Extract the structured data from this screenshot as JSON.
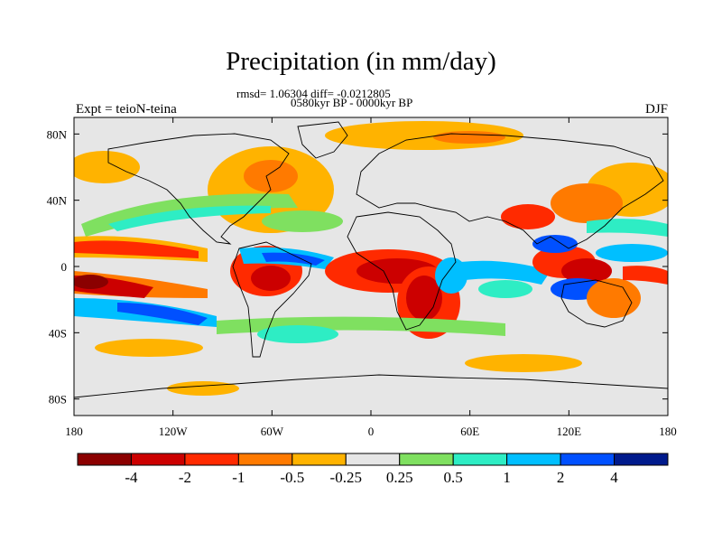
{
  "title": "Precipitation (in mm/day)",
  "stats_text": "rmsd= 1.06304 diff= -0.0212805",
  "period_text": "0580kyr BP - 0000kyr BP",
  "experiment_label": "Expt = teioN-teina",
  "season_label": "DJF",
  "axes": {
    "x_ticks": [
      "180",
      "120W",
      "60W",
      "0",
      "60E",
      "120E",
      "180"
    ],
    "y_ticks": [
      "80N",
      "40N",
      "0",
      "40S",
      "80S"
    ],
    "lon_values": [
      -180,
      -120,
      -60,
      0,
      60,
      120,
      180
    ],
    "lat_values": [
      80,
      40,
      0,
      -40,
      -80
    ],
    "lon_range": [
      -180,
      180
    ],
    "lat_range": [
      -90,
      90
    ]
  },
  "colorbar": {
    "colors": [
      "#8b0000",
      "#cc0000",
      "#ff2a00",
      "#ff7a00",
      "#ffb300",
      "#e6e6e6",
      "#7fe060",
      "#2eedc4",
      "#00bfff",
      "#0050ff",
      "#001a8c"
    ],
    "labels": [
      "-4",
      "-2",
      "-1",
      "-0.5",
      "-0.25",
      "0.25",
      "0.5",
      "1",
      "2",
      "4"
    ]
  },
  "map": {
    "background_color": "#e6e6e6"
  }
}
